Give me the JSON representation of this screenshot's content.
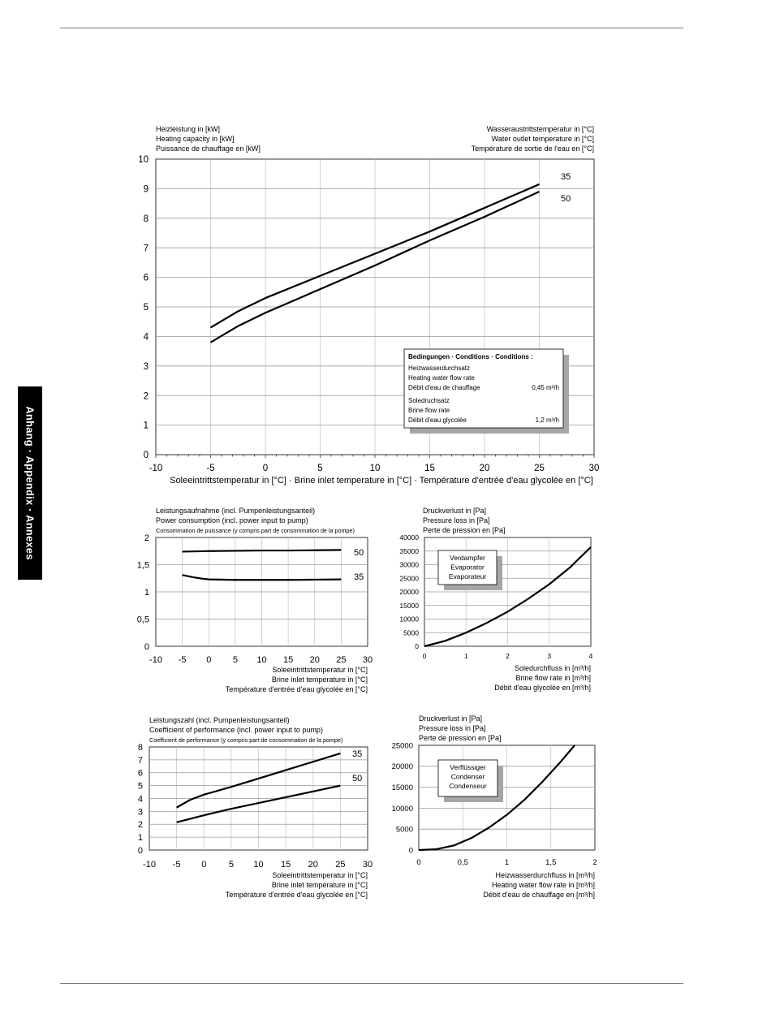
{
  "side_tab": {
    "label": "Anhang · Appendix · Annexes"
  },
  "chart_data": [
    {
      "id": "main",
      "type": "line",
      "ylabel_lines": [
        "Heizleistung in [kW]",
        "Heating capacity in [kW]",
        "Puissance de chauffage en [kW]"
      ],
      "series_label_lines": [
        "Wasseraustrittstemperatur in [°C]",
        "Water outlet temperature in [°C]",
        "Température de sortie de l'eau en [°C]"
      ],
      "xlabel_lines": [
        "Soleeintrittstemperatur in [°C] · Brine inlet temperature in [°C] · Température d'entrée d'eau glycolée en [°C]"
      ],
      "xlim": [
        -10,
        30
      ],
      "ylim": [
        0,
        10
      ],
      "xticks": [
        -10,
        -5,
        0,
        5,
        10,
        15,
        20,
        25,
        30
      ],
      "yticks": [
        0,
        1,
        2,
        3,
        4,
        5,
        6,
        7,
        8,
        9,
        10
      ],
      "xtick_labels": [
        "-10",
        "-5",
        "0",
        "5",
        "10",
        "15",
        "20",
        "25",
        "30"
      ],
      "ytick_labels": [
        "0",
        "1",
        "2",
        "3",
        "4",
        "5",
        "6",
        "7",
        "8",
        "9",
        "10"
      ],
      "series": [
        {
          "name": "35",
          "x": [
            -5,
            -2.5,
            0,
            5,
            10,
            15,
            20,
            25
          ],
          "y": [
            4.3,
            4.85,
            5.3,
            6.05,
            6.8,
            7.55,
            8.35,
            9.15
          ]
        },
        {
          "name": "50",
          "x": [
            -5,
            -2.5,
            0,
            5,
            10,
            15,
            20,
            25
          ],
          "y": [
            3.8,
            4.35,
            4.8,
            5.6,
            6.4,
            7.25,
            8.05,
            8.9
          ]
        }
      ],
      "conditions_box": {
        "title": "Bedingungen · Conditions · Conditions :",
        "lines": [
          {
            "text": "Heizwasserdurchsatz",
            "value": ""
          },
          {
            "text": "Heating water flow rate",
            "value": ""
          },
          {
            "text": "Débit d'eau de chauffage",
            "value": "0,45 m³/h"
          },
          {
            "text": "Soledruchsatz",
            "value": ""
          },
          {
            "text": "Brine flow rate",
            "value": ""
          },
          {
            "text": "Débit d'eau glycolée",
            "value": "1,2 m³/h"
          }
        ]
      }
    },
    {
      "id": "power",
      "type": "line",
      "ylabel_lines": [
        "Leistungsaufnahme (incl. Pumpenleistungsanteil)",
        "Power consumption (incl. power input to pump)",
        "Consommation de puissance (y compris part de consommation de la pompe)"
      ],
      "xlabel_lines": [
        "Soleeintrittstemperatur in [°C]",
        "Brine inlet temperature in [°C]",
        "Température d'entrée d'eau glycolée en [°C]"
      ],
      "xlim": [
        -10,
        30
      ],
      "ylim": [
        0,
        2
      ],
      "xticks": [
        -10,
        -5,
        0,
        5,
        10,
        15,
        20,
        25,
        30
      ],
      "yticks": [
        0,
        0.5,
        1,
        1.5,
        2
      ],
      "xtick_labels": [
        "-10",
        "-5",
        "0",
        "5",
        "10",
        "15",
        "20",
        "25",
        "30"
      ],
      "ytick_labels": [
        "0",
        "0,5",
        "1",
        "1,5",
        "2"
      ],
      "series": [
        {
          "name": "50",
          "x": [
            -5,
            0,
            5,
            10,
            15,
            20,
            25
          ],
          "y": [
            1.74,
            1.75,
            1.755,
            1.76,
            1.76,
            1.765,
            1.77
          ]
        },
        {
          "name": "35",
          "x": [
            -5,
            -3,
            -1,
            0,
            5,
            10,
            15,
            20,
            25
          ],
          "y": [
            1.31,
            1.27,
            1.24,
            1.23,
            1.22,
            1.22,
            1.22,
            1.225,
            1.23
          ]
        }
      ]
    },
    {
      "id": "evaporator",
      "type": "line",
      "ylabel_lines": [
        "Druckverlust in [Pa]",
        "Pressure loss in [Pa]",
        "Perte de pression en [Pa]"
      ],
      "xlabel_lines": [
        "Soledurchfluss in [m³/h]",
        "Brine flow rate in [m³/h]",
        "Débit d'eau glycolée en [m³/h]"
      ],
      "xlim": [
        0,
        4
      ],
      "ylim": [
        0,
        40000
      ],
      "xticks": [
        0,
        1,
        2,
        3,
        4
      ],
      "yticks": [
        0,
        5000,
        10000,
        15000,
        20000,
        25000,
        30000,
        35000,
        40000
      ],
      "xtick_labels": [
        "0",
        "1",
        "2",
        "3",
        "4"
      ],
      "ytick_labels": [
        "0",
        "5000",
        "10000",
        "15000",
        "20000",
        "25000",
        "30000",
        "35000",
        "40000"
      ],
      "series": [
        {
          "name": "",
          "x": [
            0,
            0.5,
            1,
            1.5,
            2,
            2.5,
            3,
            3.5,
            4
          ],
          "y": [
            0,
            2000,
            5000,
            8600,
            12700,
            17500,
            22800,
            29000,
            36500
          ]
        }
      ],
      "box_lines": [
        "Verdampfer",
        "Evaporator",
        "Evaporateur"
      ]
    },
    {
      "id": "cop",
      "type": "line",
      "ylabel_lines": [
        "Leistungszahl (incl. Pumpenleistungsanteil)",
        "Coefficient of performance (incl. power input to pump)",
        "Coefficient de performance (y compris part de consommation de la pompe)"
      ],
      "xlabel_lines": [
        "Soleeintrittstemperatur in [°C]",
        "Brine inlet temperature in [°C]",
        "Température d'entrée d'eau glycolée en [°C]"
      ],
      "xlim": [
        -10,
        30
      ],
      "ylim": [
        0,
        8
      ],
      "xticks": [
        -10,
        -5,
        0,
        5,
        10,
        15,
        20,
        25,
        30
      ],
      "yticks": [
        0,
        1,
        2,
        3,
        4,
        5,
        6,
        7,
        8
      ],
      "xtick_labels": [
        "-10",
        "-5",
        "0",
        "5",
        "10",
        "15",
        "20",
        "25",
        "30"
      ],
      "ytick_labels": [
        "0",
        "1",
        "2",
        "3",
        "4",
        "5",
        "6",
        "7",
        "8"
      ],
      "series": [
        {
          "name": "35",
          "x": [
            -5,
            -2.5,
            0,
            5,
            10,
            15,
            20,
            25
          ],
          "y": [
            3.3,
            3.9,
            4.3,
            4.9,
            5.55,
            6.2,
            6.85,
            7.5
          ]
        },
        {
          "name": "50",
          "x": [
            -5,
            0,
            5,
            10,
            15,
            20,
            25
          ],
          "y": [
            2.15,
            2.7,
            3.2,
            3.65,
            4.1,
            4.55,
            5.0
          ]
        }
      ]
    },
    {
      "id": "condenser",
      "type": "line",
      "ylabel_lines": [
        "Druckverlust in [Pa]",
        "Pressure loss in [Pa]",
        "Perte de pression en [Pa]"
      ],
      "xlabel_lines": [
        "Heizwasserdurchfluss in [m³/h]",
        "Heating water flow rate in [m³/h]",
        "Débit d'eau de chauffage en [m³/h]"
      ],
      "xlim": [
        0,
        2
      ],
      "ylim": [
        0,
        25000
      ],
      "xticks": [
        0,
        0.5,
        1,
        1.5,
        2
      ],
      "yticks": [
        0,
        5000,
        10000,
        15000,
        20000,
        25000
      ],
      "xtick_labels": [
        "0",
        "0,5",
        "1",
        "1,5",
        "2"
      ],
      "ytick_labels": [
        "0",
        "5000",
        "10000",
        "15000",
        "20000",
        "25000"
      ],
      "series": [
        {
          "name": "",
          "x": [
            0,
            0.2,
            0.4,
            0.6,
            0.8,
            1.0,
            1.2,
            1.4,
            1.6,
            1.77
          ],
          "y": [
            0,
            200,
            1100,
            2900,
            5400,
            8400,
            12000,
            16200,
            20800,
            25000
          ]
        }
      ],
      "box_lines": [
        "Verflüssiger",
        "Condenser",
        "Condenseur"
      ]
    }
  ]
}
